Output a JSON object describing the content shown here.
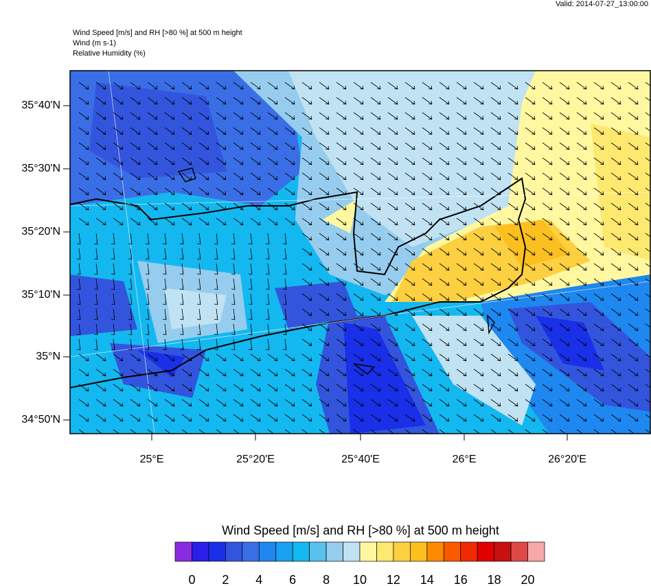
{
  "header": {
    "valid": "Valid: 2014-07-27_13:00:00",
    "lines": [
      "Wind Speed [m/s] and RH [>80 %] at 500 m height",
      "Wind   (m s-1)",
      "Relative Humidity   (%)"
    ]
  },
  "map": {
    "lat_labels": [
      "35°40'N",
      "35°30'N",
      "35°20'N",
      "35°10'N",
      "35°N",
      "34°50'N"
    ],
    "lon_labels": [
      "25°E",
      "25°20'E",
      "25°40'E",
      "26°E",
      "26°20'E"
    ]
  },
  "colorbar": {
    "title": "Wind Speed [m/s] and RH [>80 %] at 500 m height",
    "colors": [
      "#8a2be2",
      "#2a1ee8",
      "#1a2fe8",
      "#3355dd",
      "#3a6ee6",
      "#1e88f0",
      "#1aa0f0",
      "#14b8f0",
      "#5ac0ee",
      "#96cdee",
      "#c0e2f2",
      "#fff8a0",
      "#fde870",
      "#fcd040",
      "#fbbf20",
      "#fb8a00",
      "#f95a00",
      "#f02a00",
      "#e00000",
      "#c81010",
      "#e04848",
      "#f8a8a8"
    ],
    "ticks": [
      0,
      2,
      4,
      6,
      8,
      10,
      12,
      14,
      16,
      18,
      20
    ]
  }
}
